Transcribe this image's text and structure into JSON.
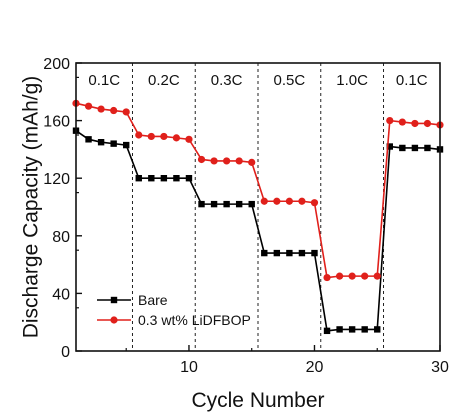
{
  "chart_data": {
    "type": "line",
    "xlabel": "Cycle Number",
    "ylabel": "Discharge Capacity (mAh/g)",
    "xlim": [
      1,
      30
    ],
    "ylim": [
      0,
      200
    ],
    "xticks": [
      10,
      20,
      30
    ],
    "yticks": [
      0,
      40,
      80,
      120,
      160,
      200
    ],
    "x": [
      1,
      2,
      3,
      4,
      5,
      6,
      7,
      8,
      9,
      10,
      11,
      12,
      13,
      14,
      15,
      16,
      17,
      18,
      19,
      20,
      21,
      22,
      23,
      24,
      25,
      26,
      27,
      28,
      29,
      30
    ],
    "series": [
      {
        "name": "Bare",
        "color": "#000000",
        "marker": "square",
        "values": [
          153,
          147,
          145,
          144,
          143,
          120,
          120,
          120,
          120,
          120,
          102,
          102,
          102,
          102,
          102,
          68,
          68,
          68,
          68,
          68,
          14,
          15,
          15,
          15,
          15,
          142,
          141,
          141,
          141,
          140
        ]
      },
      {
        "name": "0.3 wt% LiDFBOP",
        "color": "#e0201b",
        "marker": "circle",
        "values": [
          172,
          170,
          168,
          167,
          166,
          150,
          149,
          149,
          148,
          147,
          133,
          132,
          132,
          132,
          131,
          104,
          104,
          104,
          104,
          103,
          51,
          52,
          52,
          52,
          52,
          160,
          159,
          158,
          158,
          157
        ]
      }
    ],
    "rate_regions": [
      {
        "label": "0.1C",
        "start": 1,
        "end": 5.5
      },
      {
        "label": "0.2C",
        "start": 5.5,
        "end": 10.5
      },
      {
        "label": "0.3C",
        "start": 10.5,
        "end": 15.5
      },
      {
        "label": "0.5C",
        "start": 15.5,
        "end": 20.5
      },
      {
        "label": "1.0C",
        "start": 20.5,
        "end": 25.5
      },
      {
        "label": "0.1C",
        "start": 25.5,
        "end": 30
      }
    ],
    "legend_position": "bottom-left",
    "grid": false
  }
}
